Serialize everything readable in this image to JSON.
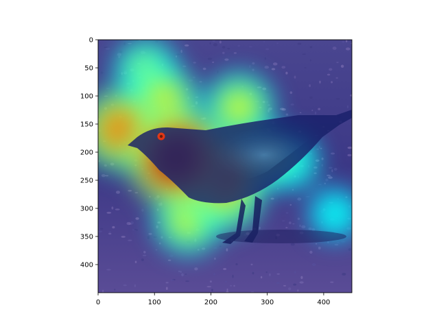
{
  "chart_data": {
    "type": "heatmap",
    "title": "",
    "xlabel": "",
    "ylabel": "",
    "xlim": [
      0,
      450
    ],
    "ylim": [
      450,
      0
    ],
    "x_ticks": [
      0,
      100,
      200,
      300,
      400
    ],
    "y_ticks": [
      0,
      50,
      100,
      150,
      200,
      250,
      300,
      350,
      400
    ],
    "x_tick_labels": [
      "0",
      "100",
      "200",
      "300",
      "400"
    ],
    "y_tick_labels": [
      "0",
      "50",
      "100",
      "150",
      "200",
      "250",
      "300",
      "350",
      "400"
    ],
    "colormap": "jet",
    "overlay": "attention heatmap over photo of a dark bird (grackle) standing on gravel",
    "grid": false,
    "attention_regions": [
      {
        "x": 140,
        "y": 210,
        "intensity": 1.0
      },
      {
        "x": 215,
        "y": 240,
        "intensity": 0.75
      },
      {
        "x": 40,
        "y": 160,
        "intensity": 0.7
      },
      {
        "x": 225,
        "y": 275,
        "intensity": 0.55
      },
      {
        "x": 115,
        "y": 110,
        "intensity": 0.5
      },
      {
        "x": 250,
        "y": 120,
        "intensity": 0.45
      },
      {
        "x": 160,
        "y": 320,
        "intensity": 0.45
      },
      {
        "x": 85,
        "y": 55,
        "intensity": 0.35
      },
      {
        "x": 300,
        "y": 210,
        "intensity": 0.35
      },
      {
        "x": 340,
        "y": 215,
        "intensity": 0.25
      },
      {
        "x": 420,
        "y": 310,
        "intensity": 0.15
      }
    ]
  }
}
